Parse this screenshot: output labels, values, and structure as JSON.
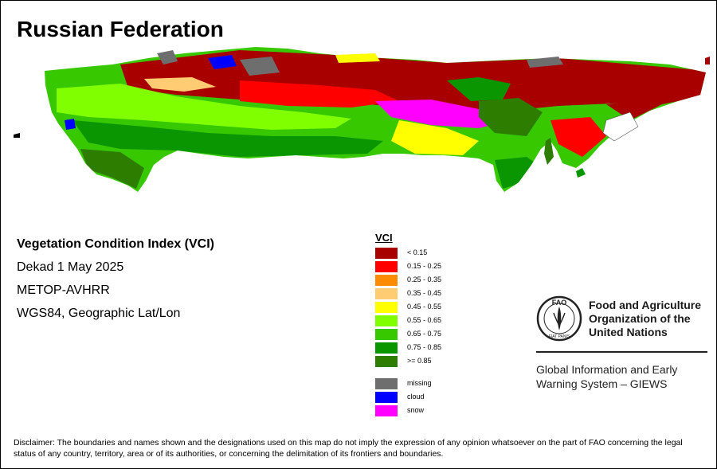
{
  "title": "Russian Federation",
  "info": {
    "index_name": "Vegetation Condition Index (VCI)",
    "period": "Dekad 1 May 2025",
    "sensor": "METOP-AVHRR",
    "projection": "WGS84, Geographic Lat/Lon"
  },
  "legend": {
    "title": "VCI",
    "classes": [
      {
        "label": "< 0.15",
        "color": "#a80000"
      },
      {
        "label": "0.15 - 0.25",
        "color": "#ff0000"
      },
      {
        "label": "0.25 - 0.35",
        "color": "#ff8c00"
      },
      {
        "label": "0.35 - 0.45",
        "color": "#ffcc73"
      },
      {
        "label": "0.45 - 0.55",
        "color": "#ffff00"
      },
      {
        "label": "0.55 - 0.65",
        "color": "#7fff00"
      },
      {
        "label": "0.65 - 0.75",
        "color": "#38c800"
      },
      {
        "label": "0.75 - 0.85",
        "color": "#0a9600"
      },
      {
        "label": ">= 0.85",
        "color": "#2d7d00"
      }
    ],
    "special": [
      {
        "label": "missing",
        "color": "#6e6e6e"
      },
      {
        "label": "cloud",
        "color": "#0000ff"
      },
      {
        "label": "snow",
        "color": "#ff00ff"
      }
    ]
  },
  "organization": {
    "logo_icon": "fao-logo-icon",
    "logo_text": "FAO",
    "logo_motto": "FIAT PANIS",
    "name_lines": [
      "Food and Agriculture",
      "Organization of the",
      "United Nations"
    ]
  },
  "system": {
    "name_lines": [
      "Global Information and Early",
      "Warning System – GIEWS"
    ]
  },
  "disclaimer": "Disclaimer: The boundaries and names shown and the designations used on this map do not imply the expression of any opinion whatsoever on the part of FAO concerning the legal status of any country, territory, area or of its authorities, or concerning the delimitation of its frontiers and boundaries."
}
